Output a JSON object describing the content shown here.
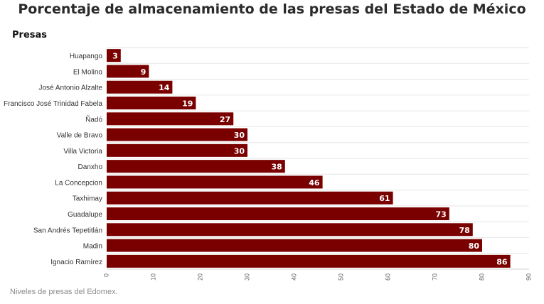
{
  "chart_data": {
    "type": "bar",
    "orientation": "horizontal",
    "title": "Porcentaje de almacenamiento de las presas del Estado de México",
    "ylabel": "Presas",
    "xlabel": "",
    "categories": [
      "Huapango",
      "El Molino",
      "José Antonio Alzalte",
      "Francisco José Trinidad Fabela",
      "Ñadó",
      "Valle de Bravo",
      "Villa Victoria",
      "Danxho",
      "La Concepcion",
      "Taxhimay",
      "Guadalupe",
      "San Andrés Tepetitlán",
      "Madin",
      "Ignacio Ramírez"
    ],
    "values": [
      3,
      9,
      14,
      19,
      27,
      30,
      30,
      38,
      46,
      61,
      73,
      78,
      80,
      86
    ],
    "xlim": [
      0,
      90
    ],
    "xticks": [
      "0",
      "10",
      "20",
      "30",
      "40",
      "50",
      "60",
      "70",
      "80",
      "90"
    ],
    "bar_color": "#7a0000",
    "grid": true,
    "data_labels": true
  },
  "caption": "Niveles de presas del Edomex."
}
